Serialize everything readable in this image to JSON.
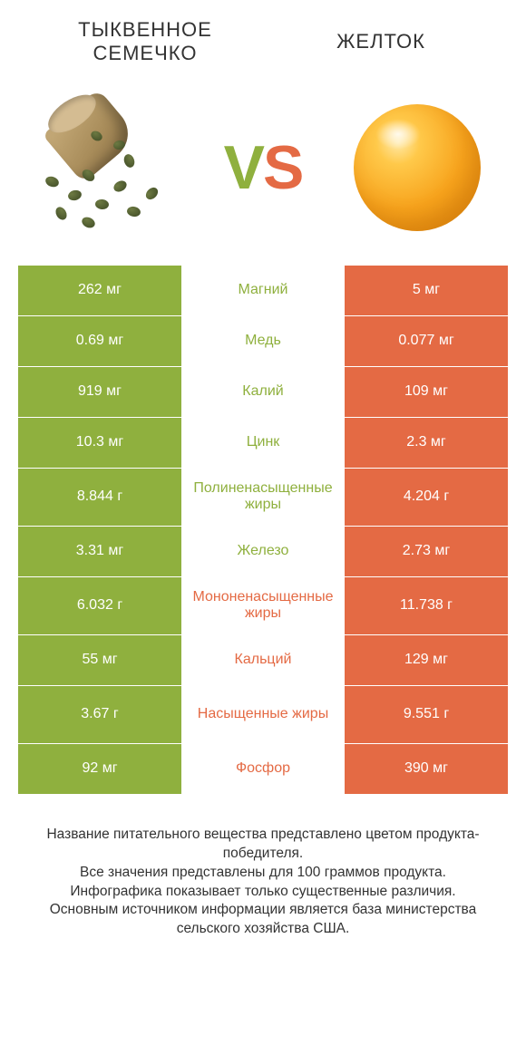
{
  "colors": {
    "green": "#8fb03e",
    "orange": "#e46a44",
    "background": "#ffffff",
    "text": "#333333"
  },
  "header": {
    "left_title": "ТЫКВЕННОЕ СЕМЕЧКО",
    "right_title": "ЖЕЛТОК",
    "vs_v": "V",
    "vs_s": "S"
  },
  "table": {
    "type": "comparison-table",
    "left_color": "#8fb03e",
    "right_color": "#e46a44",
    "rows": [
      {
        "left": "262 мг",
        "label": "Магний",
        "right": "5 мг",
        "winner": "left",
        "tall": false
      },
      {
        "left": "0.69 мг",
        "label": "Медь",
        "right": "0.077 мг",
        "winner": "left",
        "tall": false
      },
      {
        "left": "919 мг",
        "label": "Калий",
        "right": "109 мг",
        "winner": "left",
        "tall": false
      },
      {
        "left": "10.3 мг",
        "label": "Цинк",
        "right": "2.3 мг",
        "winner": "left",
        "tall": false
      },
      {
        "left": "8.844 г",
        "label": "Полиненасыщенные жиры",
        "right": "4.204 г",
        "winner": "left",
        "tall": true
      },
      {
        "left": "3.31 мг",
        "label": "Железо",
        "right": "2.73 мг",
        "winner": "left",
        "tall": false
      },
      {
        "left": "6.032 г",
        "label": "Мононенасыщенные жиры",
        "right": "11.738 г",
        "winner": "right",
        "tall": true
      },
      {
        "left": "55 мг",
        "label": "Кальций",
        "right": "129 мг",
        "winner": "right",
        "tall": false
      },
      {
        "left": "3.67 г",
        "label": "Насыщенные жиры",
        "right": "9.551 г",
        "winner": "right",
        "tall": true
      },
      {
        "left": "92 мг",
        "label": "Фосфор",
        "right": "390 мг",
        "winner": "right",
        "tall": false
      }
    ]
  },
  "footer": {
    "line1": "Название питательного вещества представлено цветом продукта-победителя.",
    "line2": "Все значения представлены для 100 граммов продукта.",
    "line3": "Инфографика показывает только существенные различия.",
    "line4": "Основным источником информации является база министерства сельского хозяйства США."
  }
}
